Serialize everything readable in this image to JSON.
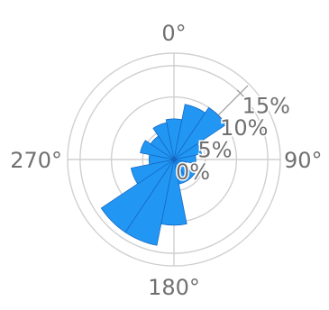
{
  "chart_data": {
    "type": "wind-rose",
    "title": "",
    "direction": "clockwise",
    "zero_location": "top",
    "angular_ticks": [
      "0°",
      "90°",
      "180°",
      "270°"
    ],
    "radial_ticks": [
      {
        "value": 0,
        "label": "0%"
      },
      {
        "value": 5,
        "label": "5%"
      },
      {
        "value": 10,
        "label": "10%"
      },
      {
        "value": 15,
        "label": "15%"
      }
    ],
    "rlim": [
      0,
      17
    ],
    "grid": true,
    "bar_color": "#2196f3",
    "edge_color": "#1565c0",
    "sector_width_deg": 22.5,
    "sectors": [
      {
        "angle": 0,
        "value": 6.5
      },
      {
        "angle": 22.5,
        "value": 9.0
      },
      {
        "angle": 45,
        "value": 10.0
      },
      {
        "angle": 67.5,
        "value": 4.5
      },
      {
        "angle": 90,
        "value": 3.5
      },
      {
        "angle": 112.5,
        "value": 2.0
      },
      {
        "angle": 135,
        "value": 4.0
      },
      {
        "angle": 157.5,
        "value": 4.0
      },
      {
        "angle": 180,
        "value": 10.5
      },
      {
        "angle": 202.5,
        "value": 14.0
      },
      {
        "angle": 225,
        "value": 14.0
      },
      {
        "angle": 247.5,
        "value": 7.0
      },
      {
        "angle": 270,
        "value": 4.0
      },
      {
        "angle": 292.5,
        "value": 5.5
      },
      {
        "angle": 315,
        "value": 4.5
      },
      {
        "angle": 337.5,
        "value": 6.0
      }
    ]
  }
}
